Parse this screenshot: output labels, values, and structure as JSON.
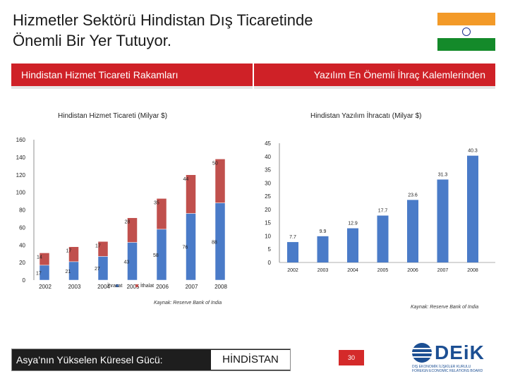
{
  "slide": {
    "title_line1": "Hizmetler Sektörü Hindistan Dış Ticaretinde",
    "title_line2": "Önemli Bir Yer Tutuyor.",
    "left_header": "Hindistan Hizmet Ticareti Rakamları",
    "right_header": "Yazılım En Önemli İhraç Kalemlerinden",
    "footer_subtitle": "Asya’nın Yükselen Küresel Gücü:",
    "footer_country": "HİNDİSTAN",
    "page_number": "30",
    "logo_text": "DEiK",
    "logo_tagline1": "DIŞ EKONOMİK İLİŞKİLER KURULU",
    "logo_tagline2": "FOREIGN ECONOMIC RELATIONS BOARD"
  },
  "colors": {
    "header_red": "#cf2127",
    "blue": "#4a7bc8",
    "red": "#c0504d",
    "footer_dark": "#1e1e1e",
    "page_badge": "#d42a2a"
  },
  "chart_data": [
    {
      "type": "bar",
      "stacked": true,
      "title": "Hindistan Hizmet Ticareti (Milyar $)",
      "categories": [
        "2002",
        "2003",
        "2004",
        "2005",
        "2006",
        "2007",
        "2008"
      ],
      "ylim": [
        0,
        160
      ],
      "yticks": [
        "0",
        "20",
        "40",
        "60",
        "80",
        "100",
        "120",
        "140",
        "160"
      ],
      "series": [
        {
          "name": "İhracat",
          "color": "#4a7bc8",
          "values": [
            17,
            21,
            27,
            43,
            58,
            76,
            88
          ]
        },
        {
          "name": "İthalat",
          "color": "#c0504d",
          "values": [
            14,
            17,
            17,
            28,
            35,
            44,
            50
          ]
        }
      ],
      "source": "Kaynak: Reserve Bank of India",
      "grid": false,
      "legend": "bottom"
    },
    {
      "type": "bar",
      "title": "Hindistan Yazılım İhracatı (Milyar $)",
      "categories": [
        "2002",
        "2003",
        "2004",
        "2005",
        "2006",
        "2007",
        "2008"
      ],
      "ylim": [
        0,
        45
      ],
      "yticks": [
        "0",
        "5",
        "10",
        "15",
        "20",
        "25",
        "30",
        "35",
        "40",
        "45"
      ],
      "values": [
        7.7,
        9.9,
        12.9,
        17.7,
        23.6,
        31.3,
        40.3
      ],
      "value_labels": [
        "7.7",
        "9.9",
        "12.9",
        "17.7",
        "23.6",
        "31.3",
        "40.3"
      ],
      "color": "#4a7bc8",
      "source": "Kaynak: Reserve Bank of India",
      "grid": false
    }
  ]
}
